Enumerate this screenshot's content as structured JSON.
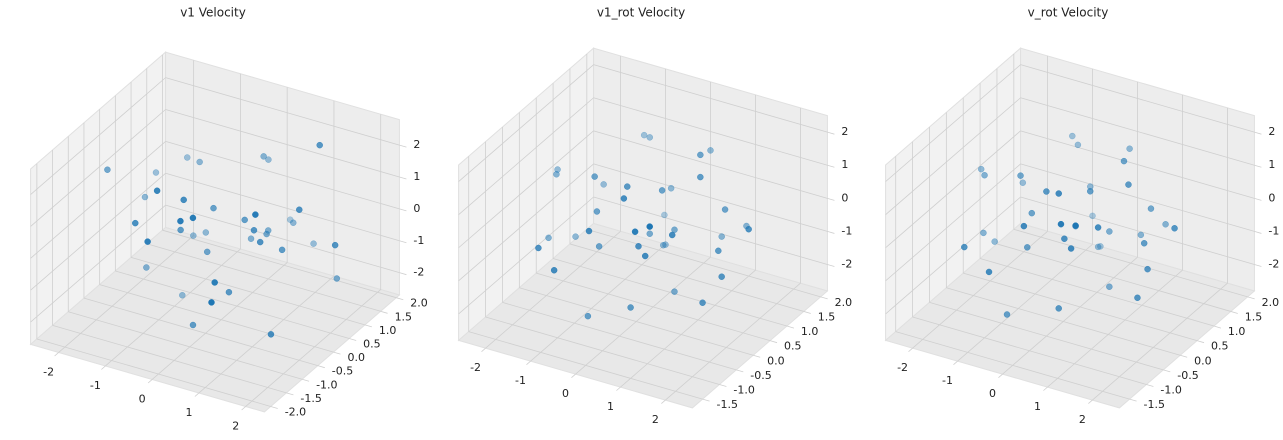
{
  "chart_data": [
    {
      "type": "scatter3d",
      "title": "v1 Velocity",
      "color": "#1f77b4",
      "x": [
        -0.3,
        0.5,
        -1.2,
        1.1,
        0.2,
        -0.8,
        0.9,
        -0.1,
        1.6,
        -1.9,
        0.4,
        -0.5,
        1.3,
        -1.4,
        0.7,
        0.0,
        -0.2,
        2.1,
        -2.3,
        0.6,
        -0.7,
        1.0,
        -1.0,
        0.3,
        1.8,
        -0.4,
        0.1,
        -1.6,
        0.8,
        -0.9,
        1.4,
        -0.6,
        0.2,
        -1.1,
        0.5,
        1.2,
        -0.3,
        0.9,
        -2.0,
        0.0
      ],
      "y": [
        0.2,
        -0.5,
        1.1,
        0.3,
        -1.2,
        0.7,
        -0.1,
        1.5,
        -0.8,
        0.4,
        0.9,
        -1.6,
        1.2,
        -0.3,
        0.0,
        -0.9,
        1.8,
        0.5,
        -0.2,
        1.4,
        -1.0,
        -1.8,
        0.6,
        0.3,
        1.0,
        -0.6,
        0.8,
        1.3,
        -1.4,
        0.1,
        0.4,
        -0.4,
        1.9,
        -1.1,
        0.7,
        -0.7,
        0.0,
        1.6,
        0.9,
        -1.3
      ],
      "z": [
        0.5,
        -1.2,
        0.8,
        -0.3,
        1.6,
        -0.9,
        0.2,
        1.1,
        -1.8,
        0.0,
        -0.5,
        0.9,
        2.3,
        -1.4,
        0.4,
        -2.1,
        0.7,
        0.1,
        1.2,
        -0.6,
        1.9,
        -0.2,
        -1.0,
        0.3,
        -1.5,
        1.4,
        -0.8,
        0.6,
        0.0,
        -2.4,
        1.0,
        0.2,
        -1.1,
        0.8,
        -0.4,
        1.7,
        -0.7,
        -1.3,
        0.3,
        1.5
      ],
      "xlim": [
        -2.6,
        2.4
      ],
      "ylim": [
        -2.2,
        2.1
      ],
      "zlim": [
        -2.7,
        2.8
      ],
      "xticks": [
        -2,
        -1,
        0,
        1,
        2
      ],
      "yticks": [
        {
          "value": -2,
          "label": "-2.0"
        },
        -1.5,
        {
          "value": -1,
          "label": "-1.0"
        },
        -0.5,
        {
          "value": 0,
          "label": "0.0"
        },
        0.5,
        {
          "value": 1,
          "label": "1.0"
        },
        1.5,
        {
          "value": 2,
          "label": "2.0"
        }
      ],
      "zticks": [
        -2,
        -1,
        0,
        1,
        2
      ]
    },
    {
      "type": "scatter3d",
      "title": "v1_rot Velocity",
      "color": "#1f77b4",
      "x": [
        0.2,
        -0.6,
        1.3,
        -1.5,
        0.8,
        -0.2,
        1.9,
        -2.2,
        0.4,
        -0.9,
        1.1,
        0.0,
        -1.2,
        0.6,
        1.6,
        -0.4,
        0.3,
        -1.8,
        0.9,
        -0.7,
        2.2,
        -0.1,
        0.5,
        -1.0,
        1.4,
        -0.3,
        0.7,
        -1.4,
        0.1,
        1.0,
        -0.8,
        0.4,
        -2.0,
        1.2,
        -0.5,
        0.8,
        0.0,
        -1.1,
        1.7,
        -0.2
      ],
      "y": [
        0.5,
        -0.3,
        0.9,
        0.2,
        -1.1,
        1.3,
        0.0,
        0.6,
        -0.7,
        1.6,
        -0.4,
        0.8,
        -1.3,
        1.1,
        0.3,
        -0.9,
        1.8,
        -0.2,
        0.7,
        -1.5,
        0.4,
        1.0,
        -0.6,
        0.1,
        1.4,
        -1.0,
        0.2,
        0.9,
        -0.5,
        1.2,
        -0.1,
        0.6,
        0.3,
        -1.2,
        1.5,
        -0.8,
        0.4,
        1.7,
        -0.3,
        0.0
      ],
      "z": [
        0.8,
        -0.5,
        0.3,
        -1.0,
        1.2,
        0.0,
        -0.7,
        0.4,
        -1.6,
        1.0,
        0.6,
        -1.2,
        0.1,
        1.5,
        -0.3,
        -2.0,
        0.9,
        -0.8,
        1.3,
        -0.2,
        0.5,
        -1.4,
        0.2,
        1.1,
        -0.6,
        0.7,
        -1.8,
        0.0,
        1.4,
        -0.9,
        0.3,
        -0.4,
        0.6,
        1.6,
        -1.1,
        0.2,
        -0.5,
        0.9,
        -1.3,
        1.2
      ],
      "xlim": [
        -2.6,
        2.6
      ],
      "ylim": [
        -1.8,
        2.2
      ],
      "zlim": [
        -2.8,
        2.5
      ],
      "xticks": [
        -2,
        -1,
        0,
        1,
        2
      ],
      "yticks": [
        -1.5,
        {
          "value": -1,
          "label": "-1.0"
        },
        -0.5,
        {
          "value": 0,
          "label": "0.0"
        },
        0.5,
        {
          "value": 1,
          "label": "1.0"
        },
        1.5,
        {
          "value": 2,
          "label": "2.0"
        }
      ],
      "zticks": [
        -2,
        -1,
        0,
        1,
        2
      ]
    },
    {
      "type": "scatter3d",
      "title": "v_rot Velocity",
      "color": "#1f77b4",
      "x": [
        0.3,
        -0.5,
        1.2,
        -1.6,
        0.7,
        -0.3,
        1.8,
        -2.2,
        0.5,
        -0.8,
        1.0,
        0.1,
        -1.3,
        0.6,
        1.5,
        -0.5,
        0.2,
        -1.7,
        1.0,
        -0.6,
        2.1,
        0.0,
        0.4,
        -1.1,
        1.3,
        -0.2,
        0.8,
        -1.5,
        0.2,
        0.9,
        -0.7,
        0.5,
        -1.9,
        1.1,
        -0.4,
        0.7,
        -0.1,
        -1.0,
        1.8,
        -0.3
      ],
      "y": [
        0.4,
        -0.4,
        1.0,
        0.1,
        -1.0,
        1.2,
        0.1,
        0.5,
        -0.8,
        1.5,
        -0.3,
        0.9,
        -1.2,
        1.0,
        0.4,
        -1.0,
        1.7,
        -0.1,
        0.6,
        -1.4,
        0.5,
        1.1,
        -0.5,
        0.2,
        1.3,
        -0.9,
        0.3,
        0.8,
        -0.4,
        1.1,
        0.0,
        0.7,
        0.2,
        -1.1,
        1.4,
        -0.7,
        0.5,
        1.6,
        -0.2,
        -0.1
      ],
      "z": [
        0.9,
        -0.4,
        0.2,
        -1.1,
        1.3,
        0.1,
        -0.6,
        0.5,
        -1.5,
        0.9,
        0.7,
        -1.3,
        0.0,
        1.4,
        -0.2,
        -1.9,
        1.0,
        -0.7,
        1.2,
        -0.3,
        0.4,
        -1.5,
        0.3,
        1.0,
        -0.5,
        0.8,
        -1.7,
        0.1,
        1.5,
        -0.8,
        0.2,
        -0.5,
        0.7,
        1.5,
        -1.0,
        0.3,
        -0.4,
        1.0,
        -1.2,
        1.1
      ],
      "xlim": [
        -2.6,
        2.6
      ],
      "ylim": [
        -1.8,
        2.2
      ],
      "zlim": [
        -2.8,
        2.5
      ],
      "xticks": [
        -2,
        -1,
        0,
        1,
        2
      ],
      "yticks": [
        -1.5,
        {
          "value": -1,
          "label": "-1.0"
        },
        -0.5,
        {
          "value": 0,
          "label": "0.0"
        },
        0.5,
        {
          "value": 1,
          "label": "1.0"
        },
        1.5,
        {
          "value": 2,
          "label": "2.0"
        }
      ],
      "zticks": [
        -2,
        -1,
        0,
        1,
        2
      ]
    }
  ]
}
